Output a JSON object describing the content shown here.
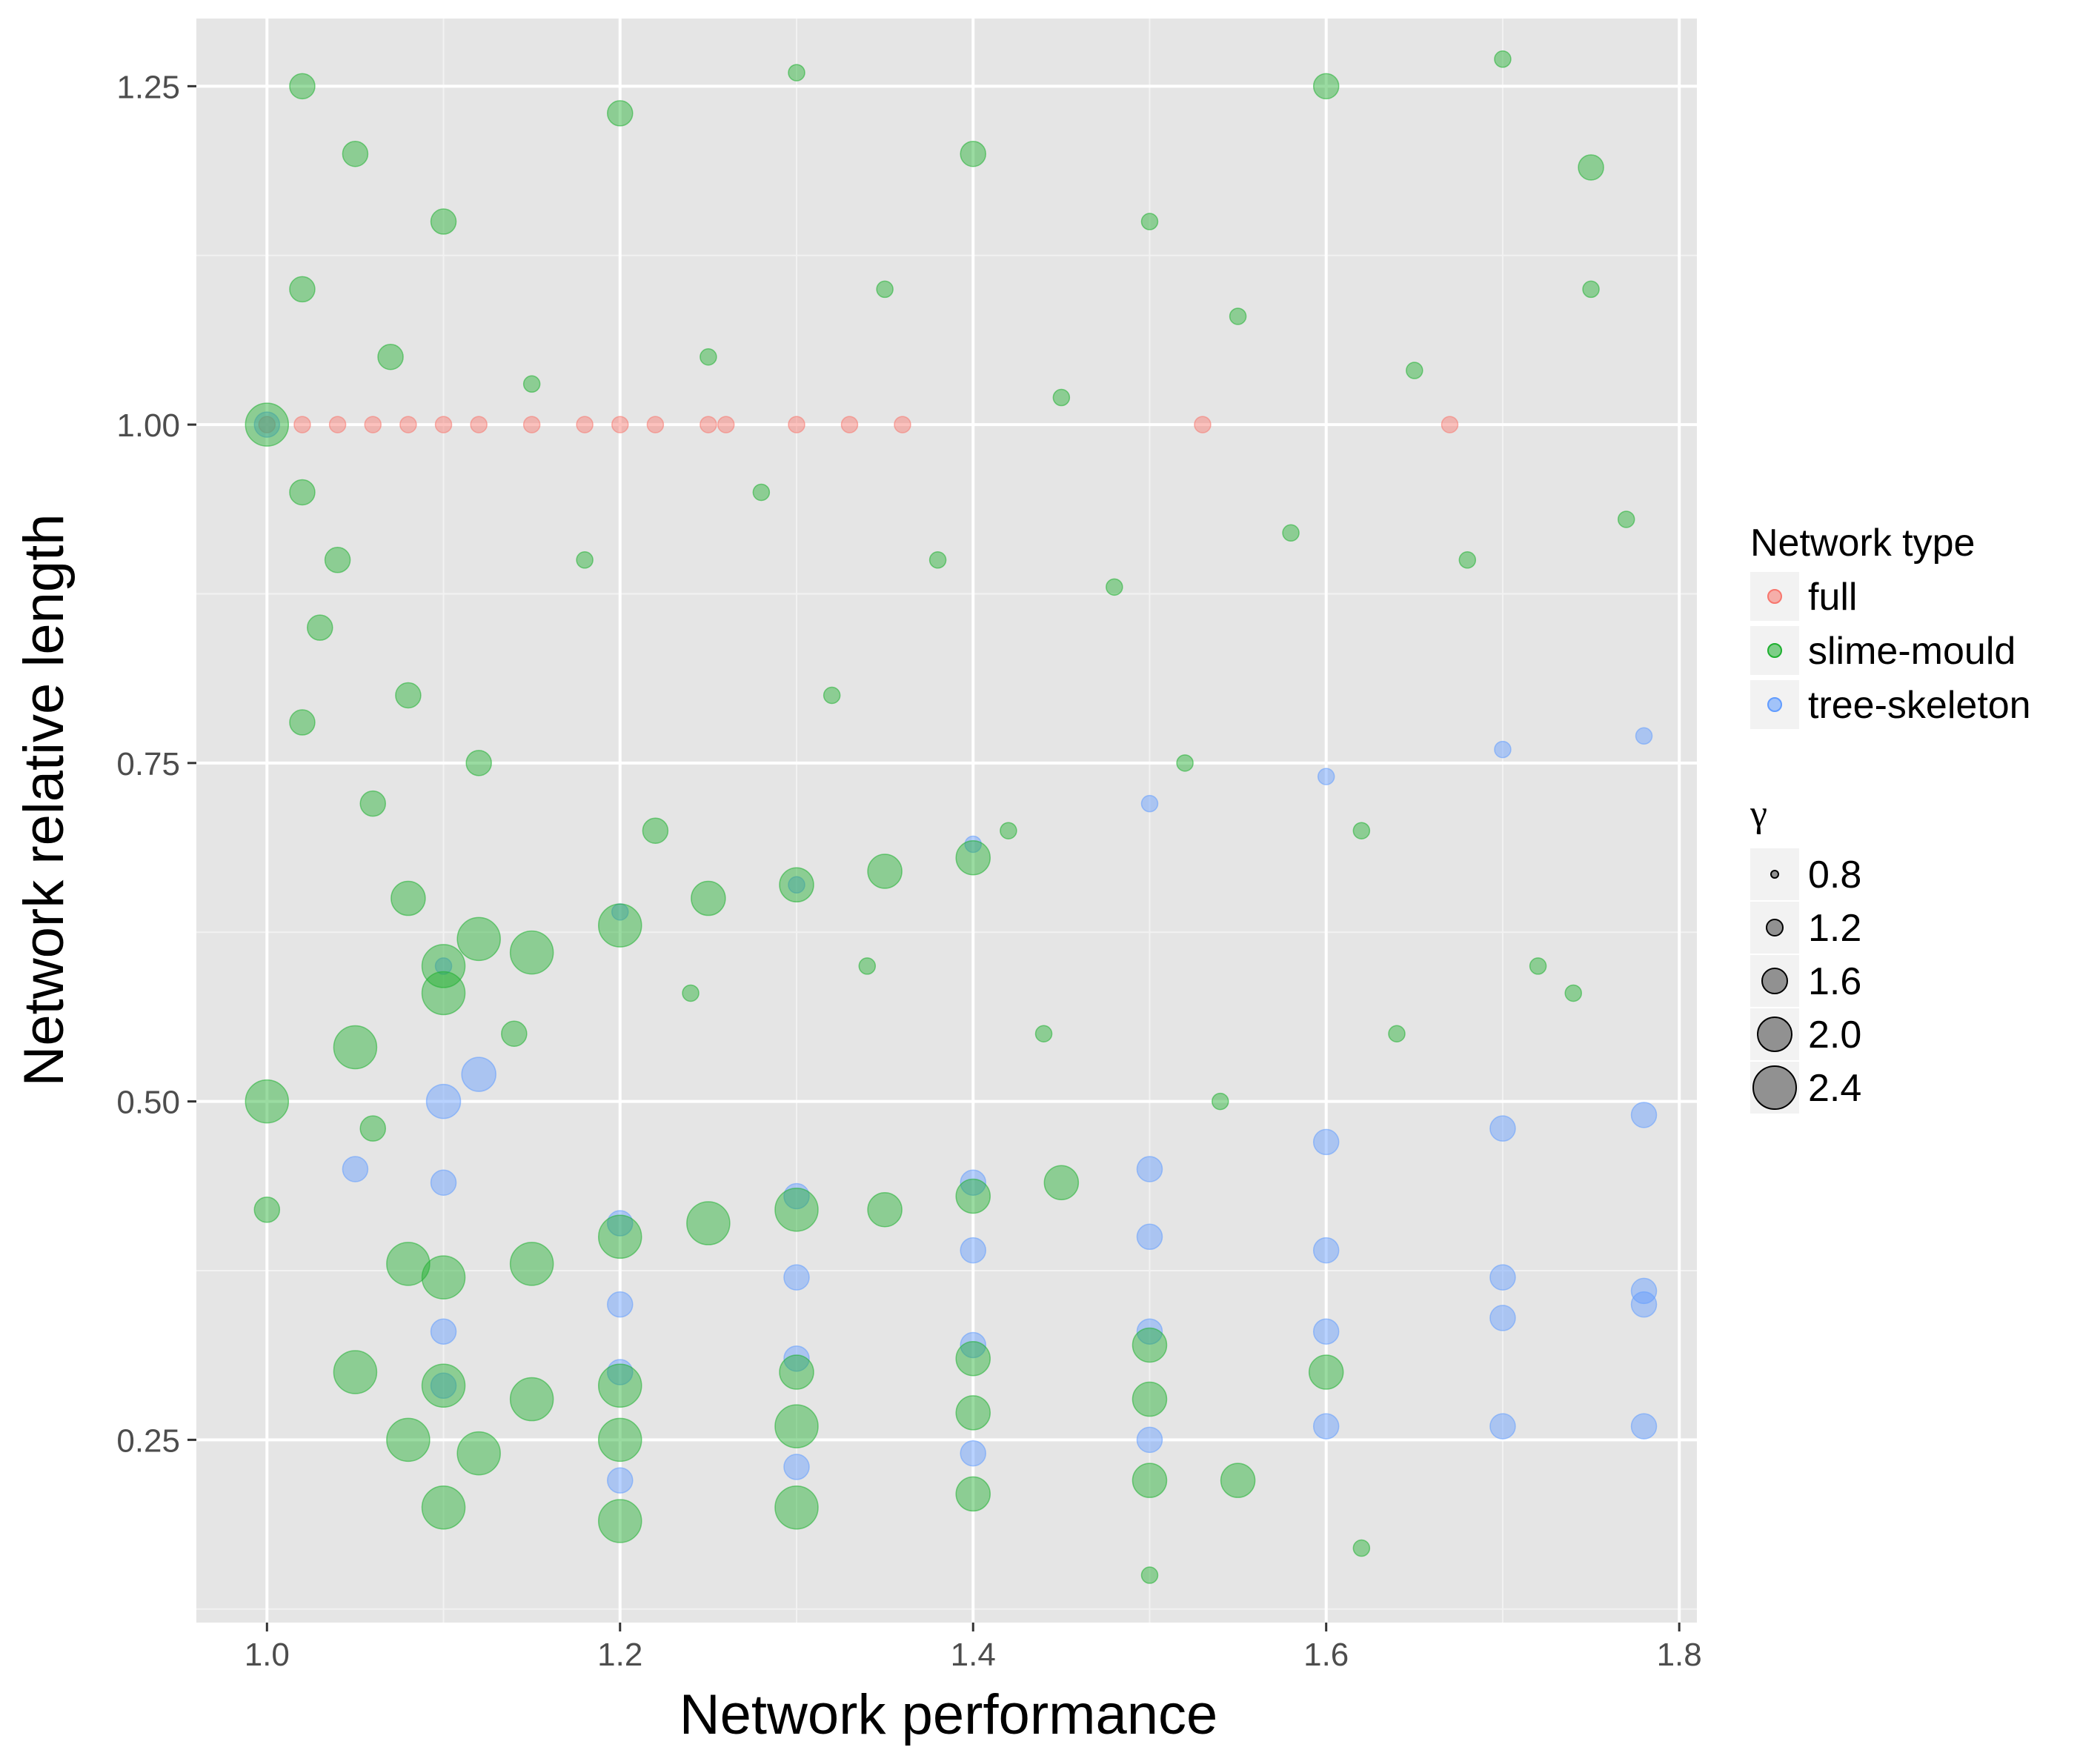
{
  "chart_data": {
    "type": "scatter",
    "xlabel": "Network performance",
    "ylabel": "Network relative length",
    "xlim": [
      0.96,
      1.81
    ],
    "ylim": [
      0.115,
      1.3
    ],
    "x_ticks": [
      1.0,
      1.2,
      1.4,
      1.6,
      1.8
    ],
    "x_tick_labels": [
      "1.0",
      "1.2",
      "1.4",
      "1.6",
      "1.8"
    ],
    "y_ticks": [
      0.25,
      0.5,
      0.75,
      1.0,
      1.25
    ],
    "y_tick_labels": [
      "0.25",
      "0.50",
      "0.75",
      "1.00",
      "1.25"
    ],
    "grid": true,
    "legend": {
      "position": "right",
      "color_title": "Network type",
      "color_entries": [
        {
          "label": "full",
          "color": "#F8766D"
        },
        {
          "label": "slime-mould",
          "color": "#1EB02F"
        },
        {
          "label": "tree-skeleton",
          "color": "#619CFF"
        }
      ],
      "size_title": "γ",
      "size_entries": [
        "0.8",
        "1.2",
        "1.6",
        "2.0",
        "2.4"
      ],
      "size_values": [
        0.8,
        1.2,
        1.6,
        2.0,
        2.4
      ]
    },
    "series": [
      {
        "name": "full",
        "color": "#F8766D",
        "x": [
          1.0,
          1.02,
          1.04,
          1.06,
          1.08,
          1.1,
          1.12,
          1.15,
          1.18,
          1.2,
          1.22,
          1.25,
          1.26,
          1.3,
          1.33,
          1.36,
          1.53,
          1.67
        ],
        "y": [
          1.0,
          1.0,
          1.0,
          1.0,
          1.0,
          1.0,
          1.0,
          1.0,
          1.0,
          1.0,
          1.0,
          1.0,
          1.0,
          1.0,
          1.0,
          1.0,
          1.0,
          1.0
        ],
        "gamma": [
          1.2,
          1.2,
          1.2,
          1.2,
          1.2,
          1.2,
          1.2,
          1.2,
          1.2,
          1.2,
          1.2,
          1.2,
          1.2,
          1.2,
          1.2,
          1.2,
          1.2,
          1.2
        ]
      },
      {
        "name": "tree-skeleton",
        "color": "#619CFF",
        "x": [
          1.0,
          1.1,
          1.2,
          1.3,
          1.4,
          1.5,
          1.6,
          1.7,
          1.78,
          1.05,
          1.1,
          1.2,
          1.3,
          1.4,
          1.5,
          1.6,
          1.7,
          1.78,
          1.1,
          1.2,
          1.3,
          1.4,
          1.5,
          1.6,
          1.7,
          1.78,
          1.1,
          1.2,
          1.3,
          1.4,
          1.5,
          1.6,
          1.7,
          1.78,
          1.2,
          1.3,
          1.4,
          1.5,
          1.6,
          1.7,
          1.78,
          1.1,
          1.12
        ],
        "y": [
          1.0,
          0.6,
          0.64,
          0.66,
          0.69,
          0.72,
          0.74,
          0.76,
          0.77,
          0.45,
          0.44,
          0.41,
          0.43,
          0.44,
          0.45,
          0.47,
          0.48,
          0.49,
          0.33,
          0.35,
          0.37,
          0.39,
          0.4,
          0.39,
          0.37,
          0.36,
          0.29,
          0.3,
          0.31,
          0.32,
          0.33,
          0.33,
          0.34,
          0.35,
          0.22,
          0.23,
          0.24,
          0.25,
          0.26,
          0.26,
          0.26,
          0.5,
          0.52
        ],
        "gamma": [
          1.6,
          1.2,
          1.2,
          1.2,
          1.2,
          1.2,
          1.2,
          1.2,
          1.2,
          1.6,
          1.6,
          1.6,
          1.6,
          1.6,
          1.6,
          1.6,
          1.6,
          1.6,
          1.6,
          1.6,
          1.6,
          1.6,
          1.6,
          1.6,
          1.6,
          1.6,
          1.6,
          1.6,
          1.6,
          1.6,
          1.6,
          1.6,
          1.6,
          1.6,
          1.6,
          1.6,
          1.6,
          1.6,
          1.6,
          1.6,
          1.6,
          2.0,
          2.0
        ]
      },
      {
        "name": "slime-mould",
        "color": "#1EB02F",
        "x": [
          1.0,
          1.05,
          1.1,
          1.15,
          1.2,
          1.25,
          1.3,
          1.35,
          1.4,
          1.0,
          1.02,
          1.04,
          1.06,
          1.08,
          1.1,
          1.12,
          1.08,
          1.1,
          1.15,
          1.2,
          1.25,
          1.3,
          1.35,
          1.4,
          1.45,
          1.05,
          1.1,
          1.15,
          1.2,
          1.3,
          1.4,
          1.5,
          1.08,
          1.12,
          1.2,
          1.3,
          1.4,
          1.5,
          1.6,
          1.1,
          1.2,
          1.3,
          1.4,
          1.5,
          1.55,
          1.02,
          1.05,
          1.1,
          1.2,
          1.3,
          1.4,
          1.5,
          1.6,
          1.7,
          1.75,
          1.02,
          1.07,
          1.15,
          1.25,
          1.35,
          1.45,
          1.55,
          1.65,
          1.75,
          1.03,
          1.08,
          1.18,
          1.28,
          1.38,
          1.48,
          1.58,
          1.68,
          1.02,
          1.12,
          1.22,
          1.32,
          1.42,
          1.52,
          1.62,
          1.72,
          1.0,
          1.06,
          1.14,
          1.24,
          1.34,
          1.44,
          1.54,
          1.64,
          1.74,
          1.77,
          1.5,
          1.62
        ],
        "y": [
          0.5,
          0.54,
          0.58,
          0.61,
          0.63,
          0.65,
          0.66,
          0.67,
          0.68,
          1.0,
          0.95,
          0.9,
          0.72,
          0.65,
          0.6,
          0.62,
          0.38,
          0.37,
          0.38,
          0.4,
          0.41,
          0.42,
          0.42,
          0.43,
          0.44,
          0.3,
          0.29,
          0.28,
          0.29,
          0.3,
          0.31,
          0.32,
          0.25,
          0.24,
          0.25,
          0.26,
          0.27,
          0.28,
          0.3,
          0.2,
          0.19,
          0.2,
          0.21,
          0.22,
          0.22,
          1.25,
          1.2,
          1.15,
          1.23,
          1.26,
          1.2,
          1.15,
          1.25,
          1.27,
          1.19,
          1.1,
          1.05,
          1.03,
          1.05,
          1.1,
          1.02,
          1.08,
          1.04,
          1.1,
          0.85,
          0.8,
          0.9,
          0.95,
          0.9,
          0.88,
          0.92,
          0.9,
          0.78,
          0.75,
          0.7,
          0.8,
          0.7,
          0.75,
          0.7,
          0.6,
          0.42,
          0.48,
          0.55,
          0.58,
          0.6,
          0.55,
          0.5,
          0.55,
          0.58,
          0.93,
          0.15,
          0.17
        ],
        "gamma": [
          2.4,
          2.4,
          2.4,
          2.4,
          2.4,
          2.0,
          2.0,
          2.0,
          2.0,
          2.4,
          1.6,
          1.6,
          1.6,
          2.0,
          2.4,
          2.4,
          2.4,
          2.4,
          2.4,
          2.4,
          2.4,
          2.4,
          2.0,
          2.0,
          2.0,
          2.4,
          2.4,
          2.4,
          2.4,
          2.0,
          2.0,
          2.0,
          2.4,
          2.4,
          2.4,
          2.4,
          2.0,
          2.0,
          2.0,
          2.4,
          2.4,
          2.4,
          2.0,
          2.0,
          2.0,
          1.6,
          1.6,
          1.6,
          1.6,
          1.2,
          1.6,
          1.2,
          1.6,
          1.2,
          1.6,
          1.6,
          1.6,
          1.2,
          1.2,
          1.2,
          1.2,
          1.2,
          1.2,
          1.2,
          1.6,
          1.6,
          1.2,
          1.2,
          1.2,
          1.2,
          1.2,
          1.2,
          1.6,
          1.6,
          1.6,
          1.2,
          1.2,
          1.2,
          1.2,
          1.2,
          1.6,
          1.6,
          1.6,
          1.2,
          1.2,
          1.2,
          1.2,
          1.2,
          1.2,
          1.2,
          1.2,
          1.2
        ]
      }
    ]
  }
}
